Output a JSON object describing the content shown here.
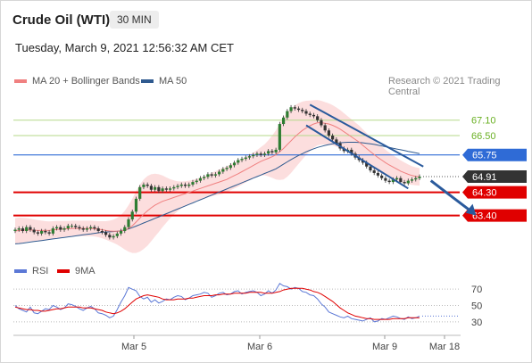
{
  "header": {
    "title": "Crude Oil (WTI)",
    "timeframe": "30 MIN",
    "datetime": "Tuesday, March 9, 2021 12:56:32 AM CET",
    "credit": "Research © 2021 Trading Central"
  },
  "legend": {
    "ma20_label": "MA 20 + Bollinger Bands",
    "ma20_color": "#f08080",
    "ma50_label": "MA 50",
    "ma50_color": "#2f5a8f",
    "rsi_label": "RSI",
    "rsi_color": "#5b78d6",
    "ma9_label": "9MA",
    "ma9_color": "#e00000"
  },
  "chart_data": [
    {
      "type": "line",
      "subtype": "candlestick",
      "x_ticks": [
        "Mar 5",
        "Mar 6",
        "Mar 9",
        "Mar 18"
      ],
      "ylim": [
        61.9,
        68.3
      ],
      "close": [
        62.85,
        62.9,
        62.8,
        62.95,
        62.85,
        62.75,
        62.7,
        62.8,
        62.75,
        62.7,
        62.9,
        62.95,
        62.85,
        62.9,
        63.0,
        63.0,
        62.95,
        62.9,
        62.85,
        62.9,
        62.95,
        62.9,
        62.8,
        62.75,
        62.65,
        62.55,
        62.6,
        62.7,
        62.8,
        62.95,
        63.25,
        63.55,
        64.05,
        64.5,
        64.6,
        64.55,
        64.4,
        64.5,
        64.35,
        64.45,
        64.4,
        64.45,
        64.5,
        64.55,
        64.6,
        64.55,
        64.6,
        64.7,
        64.75,
        64.85,
        64.9,
        65.0,
        64.95,
        65.0,
        65.1,
        65.2,
        65.25,
        65.35,
        65.45,
        65.55,
        65.6,
        65.65,
        65.7,
        65.75,
        65.8,
        65.75,
        65.8,
        65.9,
        65.85,
        65.95,
        66.95,
        67.2,
        67.45,
        67.6,
        67.55,
        67.5,
        67.45,
        67.35,
        67.3,
        67.25,
        67.1,
        66.9,
        66.7,
        66.5,
        66.35,
        66.2,
        66.0,
        65.9,
        65.95,
        65.8,
        65.65,
        65.55,
        65.45,
        65.3,
        65.15,
        65.05,
        64.95,
        64.85,
        64.75,
        64.7,
        64.8,
        64.85,
        64.7,
        64.65,
        64.75,
        64.8,
        64.85,
        64.91
      ],
      "ma20": [
        62.8,
        62.82,
        62.83,
        62.84,
        62.84,
        62.83,
        62.82,
        62.82,
        62.82,
        62.82,
        62.84,
        62.86,
        62.87,
        62.88,
        62.89,
        62.9,
        62.9,
        62.9,
        62.9,
        62.9,
        62.9,
        62.89,
        62.87,
        62.85,
        62.82,
        62.8,
        62.79,
        62.79,
        62.8,
        62.83,
        62.9,
        63.0,
        63.15,
        63.3,
        63.45,
        63.58,
        63.7,
        63.8,
        63.88,
        63.95,
        64.0,
        64.05,
        64.1,
        64.15,
        64.2,
        64.25,
        64.3,
        64.35,
        64.4,
        64.45,
        64.5,
        64.55,
        64.6,
        64.65,
        64.7,
        64.75,
        64.8,
        64.88,
        64.95,
        65.02,
        65.1,
        65.18,
        65.26,
        65.34,
        65.42,
        65.5,
        65.56,
        65.62,
        65.68,
        65.75,
        65.88,
        66.0,
        66.15,
        66.3,
        66.45,
        66.58,
        66.7,
        66.8,
        66.88,
        66.95,
        67.0,
        67.0,
        66.98,
        66.95,
        66.9,
        66.83,
        66.75,
        66.65,
        66.55,
        66.45,
        66.35,
        66.25,
        66.12,
        66.0,
        65.88,
        65.76,
        65.65,
        65.55,
        65.45,
        65.36,
        65.28,
        65.2,
        65.12,
        65.06,
        65.0,
        64.95,
        64.92,
        64.9
      ],
      "ma50": [
        62.3,
        62.31,
        62.33,
        62.35,
        62.37,
        62.39,
        62.41,
        62.43,
        62.45,
        62.47,
        62.49,
        62.51,
        62.53,
        62.55,
        62.57,
        62.59,
        62.61,
        62.63,
        62.65,
        62.67,
        62.69,
        62.71,
        62.73,
        62.75,
        62.76,
        62.77,
        62.78,
        62.79,
        62.81,
        62.84,
        62.88,
        62.93,
        62.99,
        63.05,
        63.11,
        63.17,
        63.23,
        63.29,
        63.35,
        63.41,
        63.47,
        63.53,
        63.59,
        63.65,
        63.71,
        63.77,
        63.83,
        63.89,
        63.95,
        64.01,
        64.07,
        64.13,
        64.19,
        64.25,
        64.31,
        64.37,
        64.43,
        64.49,
        64.55,
        64.61,
        64.67,
        64.73,
        64.79,
        64.85,
        64.91,
        64.97,
        65.03,
        65.09,
        65.15,
        65.21,
        65.3,
        65.39,
        65.48,
        65.57,
        65.65,
        65.73,
        65.8,
        65.87,
        65.93,
        65.99,
        66.04,
        66.08,
        66.12,
        66.15,
        66.18,
        66.2,
        66.22,
        66.23,
        66.24,
        66.24,
        66.24,
        66.23,
        66.22,
        66.2,
        66.18,
        66.16,
        66.13,
        66.1,
        66.07,
        66.04,
        66.01,
        65.98,
        65.95,
        65.92,
        65.89,
        65.86,
        65.83,
        65.8
      ],
      "bb_width": [
        0.5,
        0.5,
        0.48,
        0.46,
        0.44,
        0.42,
        0.4,
        0.38,
        0.36,
        0.35,
        0.34,
        0.33,
        0.32,
        0.31,
        0.3,
        0.3,
        0.3,
        0.3,
        0.3,
        0.3,
        0.3,
        0.3,
        0.31,
        0.33,
        0.36,
        0.4,
        0.45,
        0.52,
        0.62,
        0.75,
        0.9,
        1.05,
        1.2,
        1.3,
        1.35,
        1.35,
        1.3,
        1.22,
        1.12,
        1.0,
        0.88,
        0.76,
        0.66,
        0.58,
        0.52,
        0.48,
        0.45,
        0.43,
        0.42,
        0.42,
        0.42,
        0.43,
        0.45,
        0.47,
        0.49,
        0.5,
        0.5,
        0.5,
        0.5,
        0.5,
        0.5,
        0.5,
        0.5,
        0.5,
        0.52,
        0.55,
        0.6,
        0.7,
        0.82,
        0.95,
        1.1,
        1.2,
        1.25,
        1.25,
        1.22,
        1.18,
        1.12,
        1.05,
        0.98,
        0.92,
        0.88,
        0.85,
        0.82,
        0.8,
        0.78,
        0.76,
        0.74,
        0.72,
        0.7,
        0.68,
        0.66,
        0.64,
        0.62,
        0.6,
        0.58,
        0.56,
        0.54,
        0.52,
        0.5,
        0.48,
        0.46,
        0.44,
        0.42,
        0.4,
        0.38,
        0.36,
        0.35,
        0.34
      ],
      "levels": [
        {
          "value": 67.1,
          "label": "67.10",
          "color": "#6ab023",
          "style": "thin"
        },
        {
          "value": 66.5,
          "label": "66.50",
          "color": "#6ab023",
          "style": "thin"
        },
        {
          "value": 65.75,
          "label": "65.75",
          "color": "#2f6bd6",
          "style": "badge"
        },
        {
          "value": 64.91,
          "label": "64.91",
          "color": "#333333",
          "style": "badge"
        },
        {
          "value": 64.3,
          "label": "64.30",
          "color": "#e00000",
          "style": "badge"
        },
        {
          "value": 63.4,
          "label": "63.40",
          "color": "#e00000",
          "style": "badge"
        }
      ],
      "channel": [
        {
          "x1": 78,
          "y1": 67.7,
          "x2": 108,
          "y2": 65.3
        },
        {
          "x1": 77,
          "y1": 66.9,
          "x2": 104,
          "y2": 64.45
        }
      ],
      "arrow": {
        "from_x": 110,
        "from_y": 64.75,
        "to_x": 122,
        "to_y": 63.4,
        "color": "#2a5a9c"
      }
    },
    {
      "type": "line",
      "name": "RSI panel",
      "ylim": [
        20,
        80
      ],
      "y_ticks": [
        70,
        50,
        30
      ],
      "rsi": [
        50,
        46,
        44,
        42,
        48,
        41,
        40,
        43,
        46,
        45,
        50,
        48,
        45,
        47,
        52,
        51,
        49,
        46,
        44,
        47,
        49,
        46,
        41,
        40,
        38,
        35,
        37,
        45,
        54,
        62,
        72,
        70,
        68,
        61,
        58,
        60,
        54,
        57,
        53,
        55,
        58,
        57,
        60,
        62,
        61,
        57,
        59,
        62,
        63,
        64,
        66,
        65,
        60,
        62,
        65,
        66,
        63,
        64,
        67,
        68,
        64,
        66,
        67,
        68,
        66,
        62,
        64,
        68,
        65,
        69,
        77,
        74,
        73,
        70,
        72,
        71,
        67,
        66,
        63,
        62,
        58,
        52,
        48,
        42,
        40,
        38,
        36,
        35,
        37,
        34,
        33,
        32,
        31,
        33,
        35,
        30,
        31,
        34,
        33,
        35,
        37,
        36,
        34,
        33,
        36,
        34,
        35,
        37
      ],
      "ma9": [
        48,
        47,
        46,
        45,
        45,
        44,
        44,
        43,
        43,
        44,
        45,
        46,
        46,
        47,
        48,
        48,
        48,
        48,
        47,
        47,
        47,
        46,
        45,
        44,
        42,
        41,
        40,
        41,
        43,
        46,
        50,
        54,
        58,
        60,
        62,
        63,
        62,
        61,
        60,
        58,
        57,
        57,
        57,
        58,
        58,
        58,
        59,
        59,
        60,
        61,
        62,
        62,
        62,
        63,
        63,
        64,
        64,
        64,
        65,
        65,
        65,
        65,
        66,
        66,
        66,
        66,
        65,
        65,
        65,
        66,
        67,
        69,
        70,
        71,
        71,
        71,
        71,
        70,
        69,
        67,
        66,
        64,
        61,
        58,
        55,
        51,
        47,
        44,
        41,
        39,
        37,
        36,
        35,
        34,
        34,
        33,
        33,
        33,
        33,
        33,
        34,
        34,
        34,
        34,
        35,
        35,
        35,
        35
      ]
    }
  ]
}
